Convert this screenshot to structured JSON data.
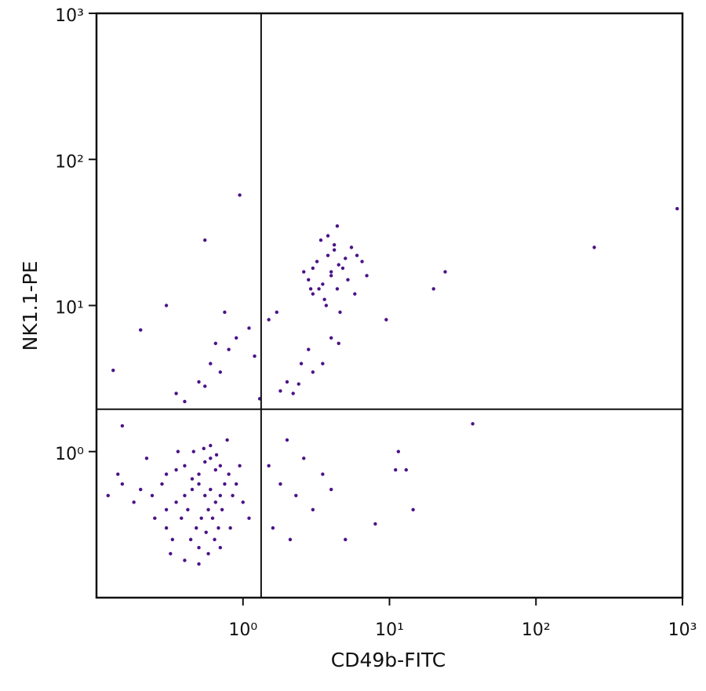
{
  "chart_data": {
    "type": "scatter",
    "x_label": "CD49b-FITC",
    "y_label": "NK1.1-PE",
    "xscale": "log",
    "yscale": "log",
    "xlim": [
      0.1,
      1000
    ],
    "ylim": [
      0.1,
      1000
    ],
    "xticks": [
      {
        "value": 1,
        "label": "10⁰"
      },
      {
        "value": 10,
        "label": "10¹"
      },
      {
        "value": 100,
        "label": "10²"
      },
      {
        "value": 1000,
        "label": "10³"
      }
    ],
    "yticks": [
      {
        "value": 1,
        "label": "10⁰"
      },
      {
        "value": 10,
        "label": "10¹"
      },
      {
        "value": 100,
        "label": "10²"
      },
      {
        "value": 1000,
        "label": "10³"
      }
    ],
    "quadrant_x": 1.33,
    "quadrant_y": 1.95,
    "color": "#4b1387",
    "x": [
      0.3,
      0.35,
      0.4,
      0.45,
      0.5,
      0.55,
      0.6,
      0.65,
      0.7,
      0.75,
      0.3,
      0.35,
      0.4,
      0.45,
      0.5,
      0.55,
      0.6,
      0.65,
      0.7,
      0.8,
      0.25,
      0.3,
      0.38,
      0.42,
      0.48,
      0.52,
      0.58,
      0.62,
      0.68,
      0.85,
      0.2,
      0.28,
      0.33,
      0.44,
      0.5,
      0.56,
      0.64,
      0.72,
      0.9,
      1.0,
      0.18,
      0.22,
      0.36,
      0.46,
      0.54,
      0.6,
      0.66,
      0.78,
      0.95,
      1.1,
      0.15,
      0.24,
      0.32,
      0.4,
      0.5,
      0.58,
      0.7,
      0.82,
      0.12,
      0.14,
      2.8,
      3,
      3.2,
      3.5,
      3.8,
      4,
      4.2,
      4.5,
      5,
      5.5,
      3,
      3.3,
      3.6,
      4,
      4.4,
      4.8,
      5.2,
      6,
      2.6,
      3.4,
      3.8,
      4.2,
      4.6,
      5.8,
      6.5,
      7,
      2.9,
      3.7,
      4.4,
      9.5,
      0.35,
      0.5,
      0.6,
      0.7,
      0.8,
      0.9,
      1.1,
      1.2,
      1.5,
      1.7,
      2,
      2.2,
      2.5,
      2.8,
      3,
      3.5,
      4,
      4.5,
      0.4,
      0.55,
      0.75,
      1.3,
      1.8,
      2.4,
      0.65,
      1.5,
      1.8,
      2,
      2.3,
      2.6,
      3,
      3.5,
      4,
      1.6,
      2.1,
      11.5,
      13,
      14.5,
      8,
      5,
      920,
      250,
      24,
      20,
      37,
      0.95,
      0.55,
      0.13,
      0.2,
      11,
      0.3,
      0.15
    ],
    "values": [
      0.4,
      0.45,
      0.5,
      0.55,
      0.6,
      0.5,
      0.55,
      0.45,
      0.5,
      0.6,
      0.7,
      0.75,
      0.8,
      0.65,
      0.7,
      0.85,
      0.9,
      0.75,
      0.8,
      0.7,
      0.35,
      0.3,
      0.35,
      0.4,
      0.3,
      0.35,
      0.4,
      0.35,
      0.3,
      0.5,
      0.55,
      0.6,
      0.25,
      0.25,
      0.22,
      0.28,
      0.25,
      0.4,
      0.6,
      0.45,
      0.45,
      0.9,
      1.0,
      1.0,
      1.05,
      1.1,
      0.95,
      1.2,
      0.8,
      0.35,
      0.6,
      0.5,
      0.2,
      0.18,
      0.17,
      0.2,
      0.22,
      0.3,
      0.5,
      0.7,
      15,
      18,
      20,
      14,
      22,
      17,
      24,
      19,
      21,
      25,
      12,
      13,
      11,
      16,
      13,
      18,
      15,
      22,
      17,
      28,
      30,
      26,
      9,
      12,
      20,
      16,
      13,
      10,
      35,
      8,
      2.5,
      3,
      4,
      3.5,
      5,
      6,
      7,
      4.5,
      8,
      9,
      3,
      2.5,
      4,
      5,
      3.5,
      4,
      6,
      5.5,
      2.2,
      2.8,
      9,
      2.3,
      2.6,
      2.9,
      5.5,
      0.8,
      0.6,
      1.2,
      0.5,
      0.9,
      0.4,
      0.7,
      0.55,
      0.3,
      0.25,
      1.0,
      0.75,
      0.4,
      0.32,
      0.25,
      46,
      25,
      17,
      13,
      1.55,
      57,
      28,
      3.6,
      6.8,
      0.75,
      10,
      1.5
    ]
  }
}
